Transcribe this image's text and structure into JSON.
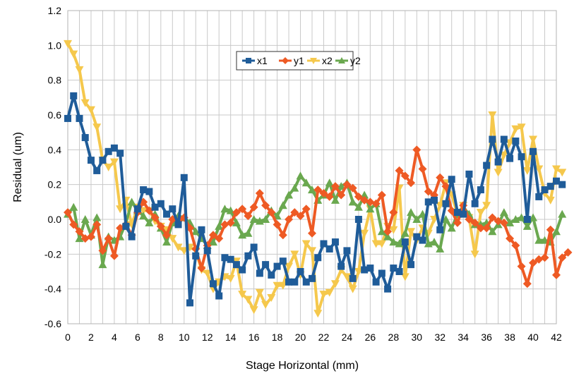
{
  "chart_data": {
    "type": "line",
    "xlabel": "Stage Horizontal (mm)",
    "ylabel": "Residual (um)",
    "xlim": [
      0,
      42
    ],
    "ylim": [
      -0.6,
      1.2
    ],
    "x_ticks": [
      0,
      2,
      4,
      6,
      8,
      10,
      12,
      14,
      16,
      18,
      20,
      22,
      24,
      26,
      28,
      30,
      32,
      34,
      36,
      38,
      40,
      42
    ],
    "y_ticks": [
      -0.6,
      -0.4,
      -0.2,
      0.0,
      0.2,
      0.4,
      0.6,
      0.8,
      1.0,
      1.2
    ],
    "grid": true,
    "legend_position": "top-center",
    "x_step": 0.5,
    "series": [
      {
        "name": "x1",
        "color": "#1f5c99",
        "marker": "square",
        "values": [
          0.58,
          0.71,
          0.58,
          0.47,
          0.34,
          0.28,
          0.34,
          0.39,
          0.41,
          0.38,
          -0.04,
          -0.1,
          0.06,
          0.17,
          0.16,
          0.07,
          0.09,
          0.03,
          0.06,
          -0.03,
          0.24,
          -0.48,
          -0.21,
          -0.06,
          -0.18,
          -0.37,
          -0.44,
          -0.22,
          -0.23,
          -0.26,
          -0.29,
          -0.21,
          -0.16,
          -0.31,
          -0.26,
          -0.32,
          -0.27,
          -0.24,
          -0.36,
          -0.36,
          -0.3,
          -0.36,
          -0.34,
          -0.22,
          -0.14,
          -0.17,
          -0.13,
          -0.27,
          -0.18,
          -0.34,
          0.0,
          -0.29,
          -0.28,
          -0.36,
          -0.31,
          -0.4,
          -0.28,
          -0.3,
          -0.13,
          -0.26,
          -0.1,
          -0.12,
          0.1,
          0.11,
          -0.06,
          0.09,
          0.23,
          0.04,
          0.03,
          0.26,
          0.09,
          0.17,
          0.31,
          0.46,
          0.33,
          0.46,
          0.35,
          0.45,
          0.36,
          0.0,
          0.39,
          0.13,
          0.17,
          0.19,
          0.22,
          0.2
        ]
      },
      {
        "name": "y1",
        "color": "#ee5a24",
        "marker": "diamond",
        "values": [
          0.04,
          -0.03,
          -0.07,
          -0.11,
          -0.1,
          -0.03,
          -0.18,
          -0.11,
          -0.21,
          -0.05,
          -0.03,
          -0.09,
          0.04,
          0.1,
          0.05,
          0.01,
          -0.04,
          -0.09,
          0.0,
          -0.01,
          0.01,
          -0.05,
          -0.17,
          -0.28,
          -0.15,
          -0.09,
          -0.11,
          -0.03,
          -0.02,
          0.04,
          0.06,
          0.02,
          0.07,
          0.15,
          0.08,
          0.04,
          -0.03,
          -0.09,
          0.0,
          0.04,
          0.02,
          0.06,
          -0.08,
          0.17,
          0.15,
          0.13,
          0.19,
          0.14,
          0.2,
          0.18,
          0.13,
          0.11,
          0.1,
          0.09,
          0.14,
          -0.07,
          0.04,
          0.28,
          0.25,
          0.21,
          0.4,
          0.29,
          0.16,
          0.14,
          0.24,
          0.19,
          0.05,
          -0.02,
          0.08,
          0.0,
          -0.02,
          -0.05,
          -0.05,
          0.01,
          -0.01,
          -0.02,
          -0.11,
          -0.15,
          -0.27,
          -0.37,
          -0.25,
          -0.23,
          -0.22,
          -0.06,
          -0.32,
          -0.22,
          -0.19
        ]
      },
      {
        "name": "x2",
        "color": "#f5c84c",
        "marker": "triangle-down",
        "values": [
          1.01,
          0.95,
          0.86,
          0.67,
          0.63,
          0.53,
          0.34,
          0.3,
          0.33,
          0.06,
          0.11,
          -0.03,
          0.07,
          0.05,
          0.05,
          -0.01,
          -0.04,
          -0.06,
          -0.11,
          -0.16,
          -0.18,
          -0.16,
          -0.18,
          -0.29,
          -0.31,
          -0.4,
          -0.36,
          -0.33,
          -0.34,
          -0.24,
          -0.43,
          -0.46,
          -0.52,
          -0.42,
          -0.49,
          -0.45,
          -0.38,
          -0.38,
          -0.27,
          -0.2,
          -0.32,
          -0.14,
          -0.18,
          -0.54,
          -0.43,
          -0.42,
          -0.37,
          -0.29,
          -0.33,
          -0.4,
          -0.3,
          -0.08,
          0.06,
          -0.14,
          -0.14,
          -0.04,
          -0.06,
          0.18,
          -0.33,
          -0.07,
          -0.12,
          -0.05,
          -0.08,
          0.0,
          0.08,
          0.21,
          0.14,
          0.03,
          0.08,
          0.01,
          -0.2,
          0.04,
          0.08,
          0.6,
          0.27,
          0.37,
          0.44,
          0.52,
          0.53,
          0.28,
          0.46,
          0.29,
          0.15,
          0.11,
          0.29,
          0.27
        ]
      },
      {
        "name": "y2",
        "color": "#6aa84f",
        "marker": "triangle-up",
        "values": [
          0.03,
          0.07,
          -0.11,
          0.0,
          -0.09,
          0.01,
          -0.26,
          -0.1,
          -0.12,
          -0.1,
          -0.02,
          0.1,
          0.05,
          0.02,
          -0.02,
          0.03,
          -0.05,
          -0.13,
          -0.02,
          0.02,
          0.01,
          -0.02,
          -0.07,
          -0.11,
          -0.15,
          -0.13,
          -0.04,
          0.06,
          0.05,
          -0.02,
          -0.09,
          -0.08,
          0.0,
          -0.01,
          0.0,
          0.05,
          0.02,
          0.08,
          0.14,
          0.18,
          0.25,
          0.21,
          0.17,
          0.11,
          0.14,
          0.21,
          0.11,
          0.19,
          0.21,
          0.1,
          0.07,
          0.14,
          0.06,
          0.09,
          -0.07,
          -0.1,
          -0.13,
          -0.14,
          -0.08,
          0.04,
          0.0,
          0.03,
          -0.14,
          -0.13,
          -0.17,
          0.0,
          -0.05,
          0.03,
          0.07,
          0.03,
          -0.03,
          -0.03,
          -0.02,
          -0.07,
          -0.03,
          0.04,
          -0.02,
          0.0,
          0.01,
          -0.04,
          0.01,
          -0.12,
          -0.12,
          -0.13,
          -0.07,
          0.03
        ]
      }
    ]
  }
}
